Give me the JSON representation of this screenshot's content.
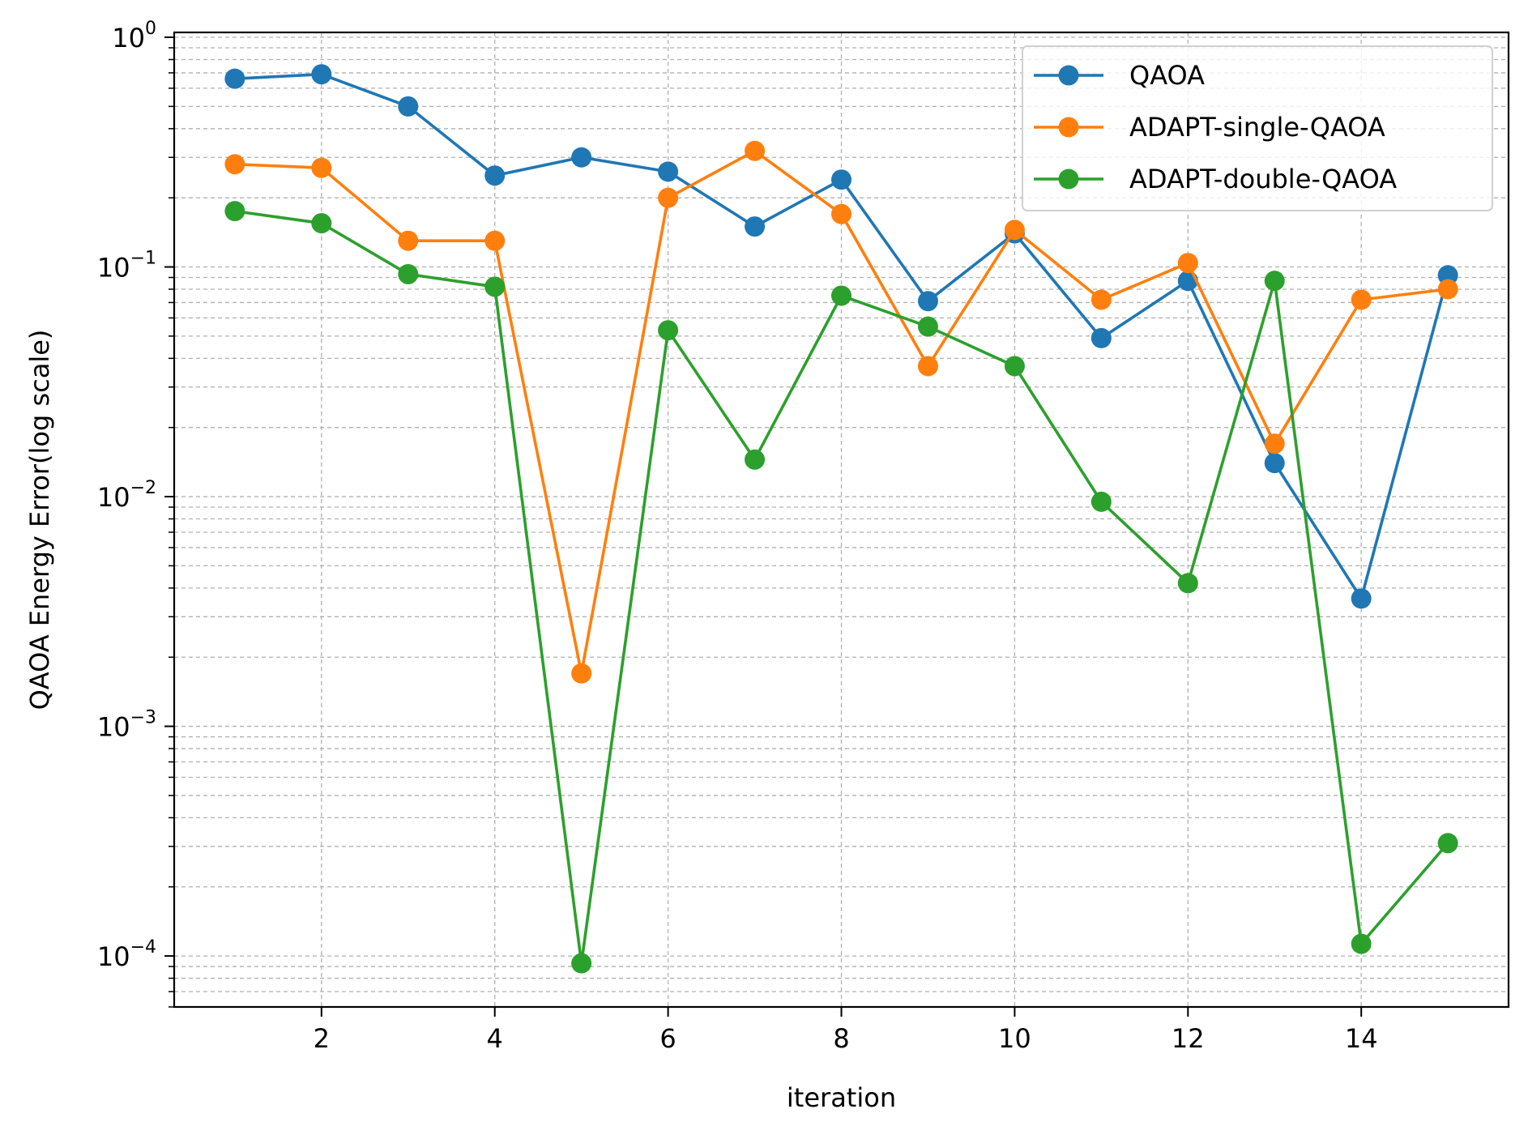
{
  "chart_data": {
    "type": "line",
    "xlabel": "iteration",
    "ylabel": "QAOA Energy Error(log scale)",
    "x": [
      1,
      2,
      3,
      4,
      5,
      6,
      7,
      8,
      9,
      10,
      11,
      12,
      13,
      14,
      15
    ],
    "xlim": [
      0.3,
      15.7
    ],
    "ylim": [
      6e-05,
      1.05
    ],
    "yscale": "log",
    "grid": true,
    "legend_position": "top-right",
    "x_ticks": [
      2,
      4,
      6,
      8,
      10,
      12,
      14
    ],
    "x_tick_labels": [
      "2",
      "4",
      "6",
      "8",
      "10",
      "12",
      "14"
    ],
    "y_ticks": [
      1,
      0.1,
      0.01,
      0.001,
      0.0001
    ],
    "y_tick_labels": [
      {
        "base": "10",
        "exp": "0"
      },
      {
        "base": "10",
        "exp": "−1"
      },
      {
        "base": "10",
        "exp": "−2"
      },
      {
        "base": "10",
        "exp": "−3"
      },
      {
        "base": "10",
        "exp": "−4"
      }
    ],
    "series": [
      {
        "name": "QAOA",
        "color": "#1f77b4",
        "values": [
          0.66,
          0.69,
          0.5,
          0.25,
          0.3,
          0.26,
          0.15,
          0.24,
          0.071,
          0.14,
          0.049,
          0.087,
          0.014,
          0.0036,
          0.092
        ]
      },
      {
        "name": "ADAPT-single-QAOA",
        "color": "#ff7f0e",
        "values": [
          0.28,
          0.27,
          0.13,
          0.13,
          0.0017,
          0.2,
          0.32,
          0.17,
          0.037,
          0.145,
          0.072,
          0.104,
          0.017,
          0.072,
          0.08
        ]
      },
      {
        "name": "ADAPT-double-QAOA",
        "color": "#2ca02c",
        "values": [
          0.175,
          0.155,
          0.093,
          0.082,
          9.3e-05,
          0.053,
          0.0145,
          0.075,
          0.055,
          0.037,
          0.0095,
          0.0042,
          0.087,
          0.000113,
          0.00031
        ]
      }
    ]
  }
}
